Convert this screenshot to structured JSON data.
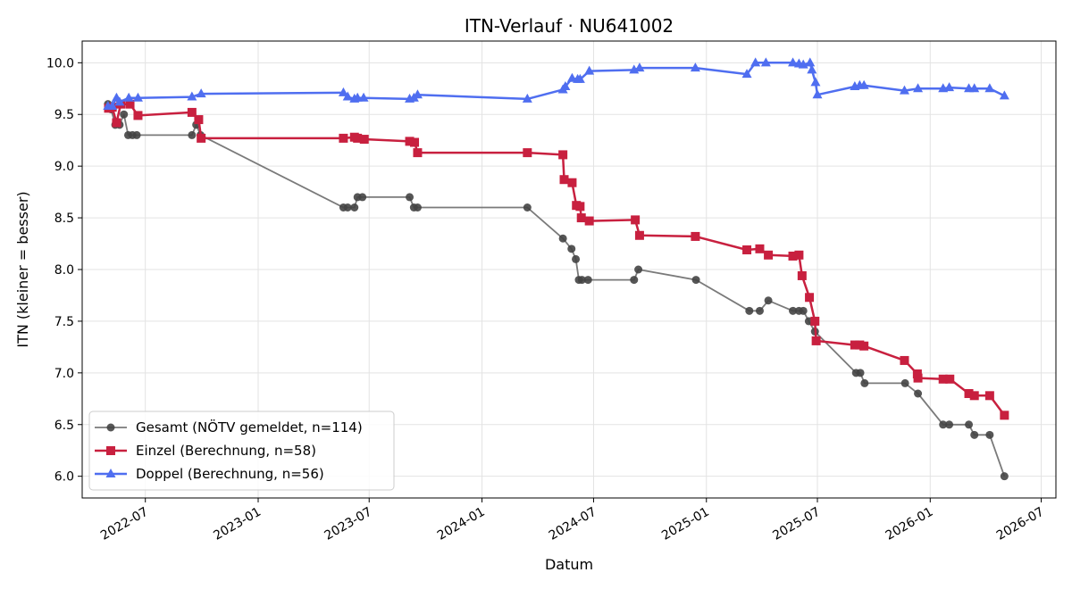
{
  "chart_data": {
    "type": "line",
    "title": "ITN-Verlauf · NU641002",
    "xlabel": "Datum",
    "ylabel": "ITN  (kleiner = besser)",
    "xlim": [
      "2022-03-20",
      "2026-07-25"
    ],
    "ylim": [
      5.79,
      10.21
    ],
    "xticks": [
      {
        "date": "2022-07-01",
        "label": "2022-07"
      },
      {
        "date": "2023-01-01",
        "label": "2023-01"
      },
      {
        "date": "2023-07-01",
        "label": "2023-07"
      },
      {
        "date": "2024-01-01",
        "label": "2024-01"
      },
      {
        "date": "2024-07-01",
        "label": "2024-07"
      },
      {
        "date": "2025-01-01",
        "label": "2025-01"
      },
      {
        "date": "2025-07-01",
        "label": "2025-07"
      },
      {
        "date": "2026-01-01",
        "label": "2026-01"
      },
      {
        "date": "2026-07-01",
        "label": "2026-07"
      }
    ],
    "yticks": [
      {
        "value": 6.0,
        "label": "6.0"
      },
      {
        "value": 6.5,
        "label": "6.5"
      },
      {
        "value": 7.0,
        "label": "7.0"
      },
      {
        "value": 7.5,
        "label": "7.5"
      },
      {
        "value": 8.0,
        "label": "8.0"
      },
      {
        "value": 8.5,
        "label": "8.5"
      },
      {
        "value": 9.0,
        "label": "9.0"
      },
      {
        "value": 9.5,
        "label": "9.5"
      },
      {
        "value": 10.0,
        "label": "10.0"
      }
    ],
    "grid": true,
    "legend_position": "lower-left",
    "series": [
      {
        "name": "Gesamt (NÖTV gemeldet, n=114)",
        "color": "#444444",
        "marker": "circle",
        "points": [
          [
            "2022-05-01",
            9.6
          ],
          [
            "2022-05-06",
            9.55
          ],
          [
            "2022-05-13",
            9.4
          ],
          [
            "2022-05-20",
            9.4
          ],
          [
            "2022-05-27",
            9.5
          ],
          [
            "2022-06-03",
            9.3
          ],
          [
            "2022-06-10",
            9.3
          ],
          [
            "2022-06-17",
            9.3
          ],
          [
            "2022-09-15",
            9.3
          ],
          [
            "2022-09-22",
            9.4
          ],
          [
            "2022-09-29",
            9.3
          ],
          [
            "2023-05-20",
            8.6
          ],
          [
            "2023-05-27",
            8.6
          ],
          [
            "2023-06-07",
            8.6
          ],
          [
            "2023-06-12",
            8.7
          ],
          [
            "2023-06-20",
            8.7
          ],
          [
            "2023-09-05",
            8.7
          ],
          [
            "2023-09-12",
            8.6
          ],
          [
            "2023-09-18",
            8.6
          ],
          [
            "2024-03-15",
            8.6
          ],
          [
            "2024-05-12",
            8.3
          ],
          [
            "2024-05-26",
            8.2
          ],
          [
            "2024-06-02",
            8.1
          ],
          [
            "2024-06-07",
            7.9
          ],
          [
            "2024-06-12",
            7.9
          ],
          [
            "2024-06-22",
            7.9
          ],
          [
            "2024-09-05",
            7.9
          ],
          [
            "2024-09-12",
            8.0
          ],
          [
            "2024-12-15",
            7.9
          ],
          [
            "2025-03-12",
            7.6
          ],
          [
            "2025-03-29",
            7.6
          ],
          [
            "2025-04-12",
            7.7
          ],
          [
            "2025-05-22",
            7.6
          ],
          [
            "2025-06-01",
            7.6
          ],
          [
            "2025-06-08",
            7.6
          ],
          [
            "2025-06-17",
            7.5
          ],
          [
            "2025-06-27",
            7.4
          ],
          [
            "2025-09-02",
            7.0
          ],
          [
            "2025-09-09",
            7.0
          ],
          [
            "2025-09-16",
            6.9
          ],
          [
            "2025-11-21",
            6.9
          ],
          [
            "2025-12-12",
            6.8
          ],
          [
            "2026-01-22",
            6.5
          ],
          [
            "2026-02-01",
            6.5
          ],
          [
            "2026-03-05",
            6.5
          ],
          [
            "2026-03-14",
            6.4
          ],
          [
            "2026-04-08",
            6.4
          ],
          [
            "2026-05-02",
            6.0
          ]
        ]
      },
      {
        "name": "Einzel (Berechnung, n=58)",
        "color": "#c8203f",
        "marker": "square",
        "points": [
          [
            "2022-05-02",
            9.56
          ],
          [
            "2022-05-08",
            9.57
          ],
          [
            "2022-05-15",
            9.42
          ],
          [
            "2022-05-22",
            9.6
          ],
          [
            "2022-06-06",
            9.6
          ],
          [
            "2022-06-19",
            9.49
          ],
          [
            "2022-09-15",
            9.52
          ],
          [
            "2022-09-26",
            9.45
          ],
          [
            "2022-09-30",
            9.27
          ],
          [
            "2023-05-20",
            9.27
          ],
          [
            "2023-06-07",
            9.28
          ],
          [
            "2023-06-12",
            9.27
          ],
          [
            "2023-06-23",
            9.26
          ],
          [
            "2023-09-05",
            9.24
          ],
          [
            "2023-09-13",
            9.23
          ],
          [
            "2023-09-18",
            9.13
          ],
          [
            "2024-03-15",
            9.13
          ],
          [
            "2024-05-12",
            9.11
          ],
          [
            "2024-05-14",
            8.87
          ],
          [
            "2024-05-27",
            8.84
          ],
          [
            "2024-06-03",
            8.62
          ],
          [
            "2024-06-09",
            8.61
          ],
          [
            "2024-06-11",
            8.5
          ],
          [
            "2024-06-24",
            8.47
          ],
          [
            "2024-09-07",
            8.48
          ],
          [
            "2024-09-14",
            8.33
          ],
          [
            "2024-12-14",
            8.32
          ],
          [
            "2025-03-08",
            8.19
          ],
          [
            "2025-03-29",
            8.2
          ],
          [
            "2025-04-12",
            8.14
          ],
          [
            "2025-05-22",
            8.13
          ],
          [
            "2025-06-01",
            8.14
          ],
          [
            "2025-06-06",
            7.94
          ],
          [
            "2025-06-18",
            7.73
          ],
          [
            "2025-06-27",
            7.5
          ],
          [
            "2025-06-29",
            7.31
          ],
          [
            "2025-08-31",
            7.27
          ],
          [
            "2025-09-08",
            7.27
          ],
          [
            "2025-09-15",
            7.26
          ],
          [
            "2025-11-20",
            7.12
          ],
          [
            "2025-12-11",
            6.99
          ],
          [
            "2025-12-12",
            6.95
          ],
          [
            "2026-01-22",
            6.94
          ],
          [
            "2026-02-02",
            6.94
          ],
          [
            "2026-03-05",
            6.8
          ],
          [
            "2026-03-14",
            6.78
          ],
          [
            "2026-04-08",
            6.78
          ],
          [
            "2026-05-02",
            6.59
          ]
        ]
      },
      {
        "name": "Doppel (Berechnung, n=56)",
        "color": "#4f6ef0",
        "marker": "triangle",
        "points": [
          [
            "2022-05-01",
            9.58
          ],
          [
            "2022-05-08",
            9.58
          ],
          [
            "2022-05-15",
            9.66
          ],
          [
            "2022-05-20",
            9.62
          ],
          [
            "2022-06-04",
            9.66
          ],
          [
            "2022-06-19",
            9.66
          ],
          [
            "2022-09-15",
            9.67
          ],
          [
            "2022-09-30",
            9.7
          ],
          [
            "2023-05-20",
            9.71
          ],
          [
            "2023-05-27",
            9.67
          ],
          [
            "2023-06-07",
            9.65
          ],
          [
            "2023-06-12",
            9.66
          ],
          [
            "2023-06-22",
            9.66
          ],
          [
            "2023-09-05",
            9.65
          ],
          [
            "2023-09-12",
            9.66
          ],
          [
            "2023-09-18",
            9.69
          ],
          [
            "2024-03-15",
            9.65
          ],
          [
            "2024-05-12",
            9.74
          ],
          [
            "2024-05-16",
            9.77
          ],
          [
            "2024-05-27",
            9.85
          ],
          [
            "2024-06-05",
            9.84
          ],
          [
            "2024-06-09",
            9.84
          ],
          [
            "2024-06-24",
            9.92
          ],
          [
            "2024-09-05",
            9.93
          ],
          [
            "2024-09-14",
            9.95
          ],
          [
            "2024-12-14",
            9.95
          ],
          [
            "2025-03-08",
            9.89
          ],
          [
            "2025-03-22",
            10.0
          ],
          [
            "2025-04-08",
            10.0
          ],
          [
            "2025-05-22",
            10.0
          ],
          [
            "2025-06-01",
            9.99
          ],
          [
            "2025-06-08",
            9.98
          ],
          [
            "2025-06-19",
            10.0
          ],
          [
            "2025-06-22",
            9.93
          ],
          [
            "2025-06-28",
            9.81
          ],
          [
            "2025-07-01",
            9.69
          ],
          [
            "2025-08-31",
            9.77
          ],
          [
            "2025-09-08",
            9.78
          ],
          [
            "2025-09-15",
            9.78
          ],
          [
            "2025-11-20",
            9.73
          ],
          [
            "2025-12-12",
            9.75
          ],
          [
            "2026-01-22",
            9.75
          ],
          [
            "2026-02-01",
            9.76
          ],
          [
            "2026-03-05",
            9.75
          ],
          [
            "2026-03-14",
            9.75
          ],
          [
            "2026-04-08",
            9.75
          ],
          [
            "2026-05-02",
            9.68
          ]
        ]
      }
    ]
  }
}
